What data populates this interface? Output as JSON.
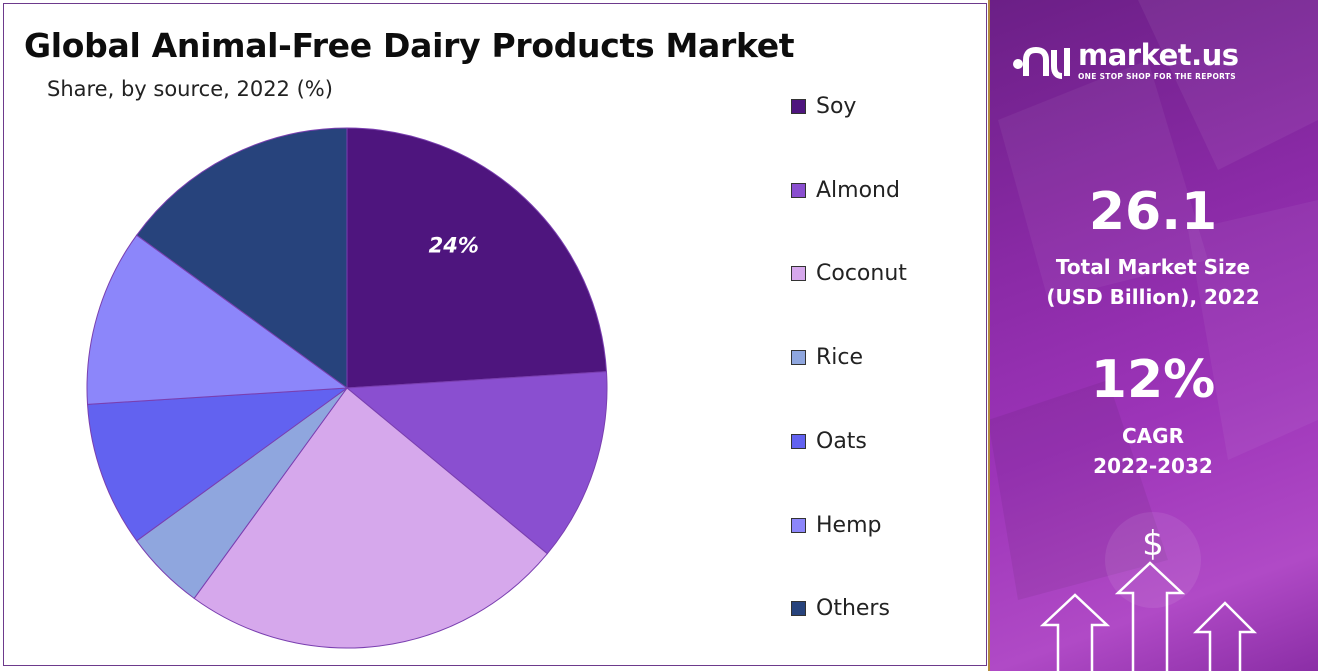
{
  "title": "Global Animal-Free Dairy Products Market",
  "subtitle": "Share, by source, 2022 (%)",
  "chart_data": {
    "type": "pie",
    "title": "Global Animal-Free Dairy Products Market",
    "subtitle": "Share, by source, 2022 (%)",
    "categories": [
      "Soy",
      "Almond",
      "Coconut",
      "Rice",
      "Oats",
      "Hemp",
      "Others"
    ],
    "values": [
      24,
      12,
      24,
      5,
      9,
      11,
      15
    ],
    "colors": [
      "#4e157e",
      "#8a4fd0",
      "#d6a8ec",
      "#8fa6de",
      "#6262f0",
      "#8c86fa",
      "#27437c"
    ],
    "data_labels": [
      "24%",
      "",
      "",
      "",
      "",
      "",
      ""
    ],
    "legend_position": "right"
  },
  "legend": [
    {
      "label": "Soy",
      "color": "#4e157e"
    },
    {
      "label": "Almond",
      "color": "#8a4fd0"
    },
    {
      "label": "Coconut",
      "color": "#d6a8ec"
    },
    {
      "label": "Rice",
      "color": "#8fa6de"
    },
    {
      "label": "Oats",
      "color": "#6262f0"
    },
    {
      "label": "Hemp",
      "color": "#8c86fa"
    },
    {
      "label": "Others",
      "color": "#27437c"
    }
  ],
  "brand": {
    "name": "market.us",
    "tagline": "ONE STOP SHOP FOR THE REPORTS",
    "icon": "market-us-logo-icon"
  },
  "stats": {
    "market_size_value": "26.1",
    "market_size_label_1": "Total Market Size",
    "market_size_label_2": "(USD Billion), 2022",
    "cagr_value": "12%",
    "cagr_label_1": "CAGR",
    "cagr_label_2": "2022-2032"
  },
  "decor": {
    "dollar_symbol": "$",
    "icon": "growth-arrows-icon"
  }
}
